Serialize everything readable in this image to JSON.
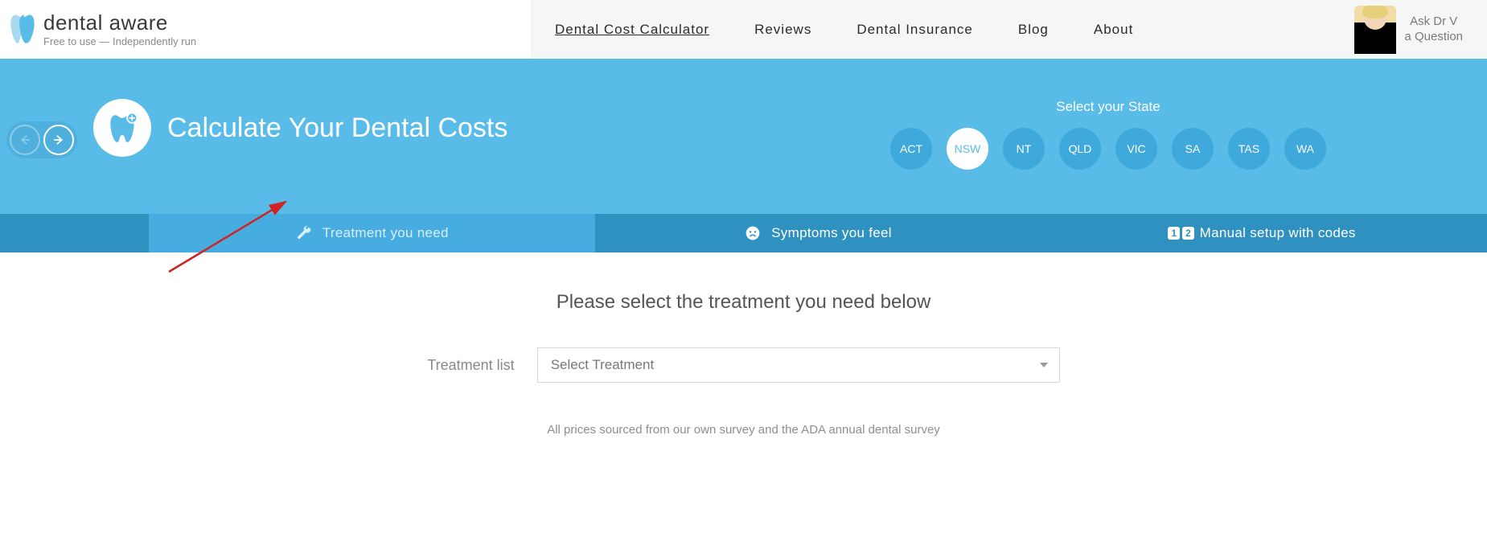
{
  "brand": {
    "name": "dental aware",
    "tagline": "Free to use — Independently run",
    "logo_color_light": "#a7d9ef",
    "logo_color_dark": "#59bbe8"
  },
  "nav": {
    "items": [
      {
        "label": "Dental Cost Calculator",
        "active": true
      },
      {
        "label": "Reviews",
        "active": false
      },
      {
        "label": "Dental Insurance",
        "active": false
      },
      {
        "label": "Blog",
        "active": false
      },
      {
        "label": "About",
        "active": false
      }
    ],
    "ask": {
      "line1": "Ask Dr V",
      "line2": "a Question"
    }
  },
  "hero": {
    "title": "Calculate Your Dental Costs",
    "state_label": "Select your State",
    "states": [
      "ACT",
      "NSW",
      "NT",
      "QLD",
      "VIC",
      "SA",
      "TAS",
      "WA"
    ],
    "selected_state": "NSW",
    "bg_color": "#59bbe8",
    "state_btn_color": "#3fa9db",
    "arrow_color": "#d02323"
  },
  "tabs": {
    "items": [
      {
        "label": "Treatment you need",
        "icon": "wrench",
        "active": true
      },
      {
        "label": "Symptoms you feel",
        "icon": "sad-face",
        "active": false
      },
      {
        "label": "Manual setup with codes",
        "icon": "code-badge",
        "active": false
      }
    ],
    "bg_color": "#2f91bf",
    "active_bg_color": "#47ace0"
  },
  "body": {
    "heading": "Please select the treatment you need below",
    "treatment_label": "Treatment list",
    "select_placeholder": "Select Treatment",
    "disclaimer": "All prices sourced from our own survey and the ADA annual dental survey"
  }
}
